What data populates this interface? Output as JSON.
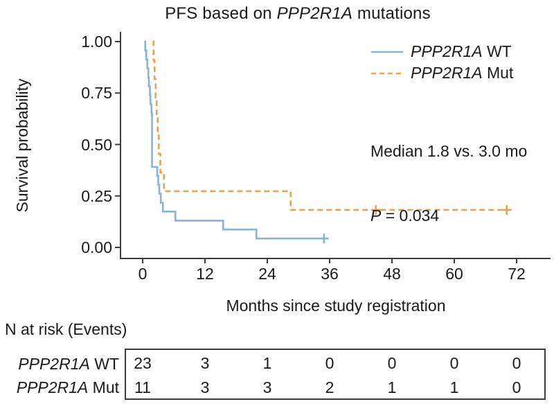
{
  "chart_data": {
    "type": "line",
    "subtype": "kaplan-meier-step",
    "title": "PFS based on PPP2R1A mutations",
    "title_parts": {
      "prefix": "PFS based on ",
      "gene": "PPP2R1A",
      "suffix": " mutations"
    },
    "x_axis": {
      "label": "Months since study registration",
      "range": [
        0,
        78
      ],
      "ticks": [
        {
          "label": "0",
          "value": 0
        },
        {
          "label": "12",
          "value": 12
        },
        {
          "label": "24",
          "value": 24
        },
        {
          "label": "36",
          "value": 36
        },
        {
          "label": "48",
          "value": 48
        },
        {
          "label": "60",
          "value": 60
        },
        {
          "label": "72",
          "value": 72
        }
      ]
    },
    "y_axis": {
      "label": "Survival probability",
      "range": [
        0,
        1
      ],
      "ticks": [
        {
          "label": "1.00",
          "value": 1.0
        },
        {
          "label": "0.75",
          "value": 0.75
        },
        {
          "label": "0.50",
          "value": 0.5
        },
        {
          "label": "0.25",
          "value": 0.25
        },
        {
          "label": "0.00",
          "value": 0.0
        }
      ]
    },
    "legend": {
      "position": "top-right",
      "items": [
        {
          "gene": "PPP2R1A",
          "suffix": " WT"
        },
        {
          "gene": "PPP2R1A",
          "suffix": " Mut"
        }
      ]
    },
    "annotations": {
      "median": "Median 1.8 vs. 3.0 mo",
      "p_label": "P",
      "p_value": " = 0.034"
    },
    "series": [
      {
        "name": "PPP2R1A WT",
        "color": "#87B3D5",
        "line_style": "solid",
        "steps": [
          [
            0.3,
            1.0
          ],
          [
            0.5,
            0.957
          ],
          [
            0.7,
            0.913
          ],
          [
            0.9,
            0.87
          ],
          [
            1.1,
            0.826
          ],
          [
            1.2,
            0.783
          ],
          [
            1.4,
            0.739
          ],
          [
            1.5,
            0.696
          ],
          [
            1.7,
            0.652
          ],
          [
            1.8,
            0.391
          ],
          [
            2.8,
            0.348
          ],
          [
            3.0,
            0.304
          ],
          [
            3.2,
            0.261
          ],
          [
            3.5,
            0.217
          ],
          [
            3.9,
            0.174
          ],
          [
            6.3,
            0.13
          ],
          [
            15.5,
            0.087
          ],
          [
            21.9,
            0.043
          ]
        ],
        "end_month": 34.9,
        "censor_marks": [
          [
            34.9,
            0.043
          ]
        ]
      },
      {
        "name": "PPP2R1A Mut",
        "color": "#E3A455",
        "line_style": "dashed",
        "steps": [
          [
            1.9,
            1.0
          ],
          [
            2.1,
            0.909
          ],
          [
            2.3,
            0.818
          ],
          [
            2.5,
            0.727
          ],
          [
            2.7,
            0.636
          ],
          [
            2.9,
            0.545
          ],
          [
            3.1,
            0.455
          ],
          [
            3.4,
            0.364
          ],
          [
            4.1,
            0.273
          ],
          [
            28.5,
            0.182
          ]
        ],
        "end_month": 70.1,
        "censor_marks": [
          [
            44.9,
            0.182
          ],
          [
            70.1,
            0.182
          ]
        ]
      }
    ],
    "risk_table": {
      "heading": "N at risk (Events)",
      "time_points": [
        0,
        12,
        24,
        36,
        48,
        60,
        72
      ],
      "rows": [
        {
          "gene": "PPP2R1A",
          "suffix": " WT",
          "values": [
            "23",
            "3",
            "1",
            "0",
            "0",
            "0",
            "0"
          ]
        },
        {
          "gene": "PPP2R1A",
          "suffix": " Mut",
          "values": [
            "11",
            "3",
            "3",
            "2",
            "1",
            "1",
            "0"
          ]
        }
      ]
    },
    "colors": {
      "axis": "#3d3d3d",
      "text": "#1a1a1a",
      "background": "#ffffff"
    }
  }
}
